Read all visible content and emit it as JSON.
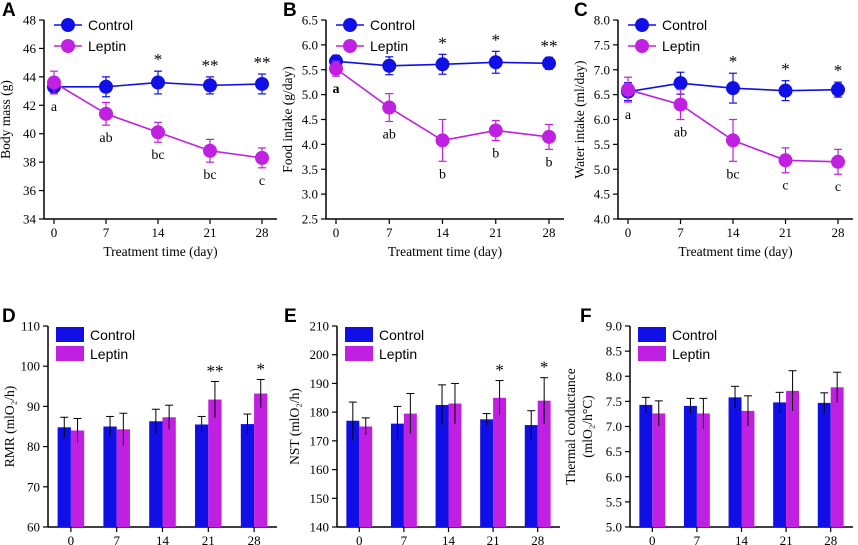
{
  "colors": {
    "control": "#1010e6",
    "leptin": "#c020e0",
    "axis": "#000000"
  },
  "chart_data": [
    {
      "panel": "A",
      "type": "line",
      "xlabel": "Treatment time (day)",
      "ylabel": "Body mass (g)",
      "x": [
        0,
        7,
        14,
        21,
        28
      ],
      "xlim": [
        0,
        28
      ],
      "ylim": [
        34,
        48
      ],
      "yticks": [
        "34",
        "36",
        "38",
        "40",
        "42",
        "44",
        "46",
        "48"
      ],
      "legend": [
        "Control",
        "Leptin"
      ],
      "series": [
        {
          "name": "Control",
          "values": [
            43.3,
            43.3,
            43.6,
            43.4,
            43.5
          ],
          "errors": [
            0.5,
            0.7,
            0.8,
            0.6,
            0.7
          ]
        },
        {
          "name": "Leptin",
          "values": [
            43.6,
            41.4,
            40.1,
            38.8,
            38.3
          ],
          "errors": [
            0.8,
            0.8,
            0.7,
            0.8,
            0.7
          ]
        }
      ],
      "stars": [
        "",
        "",
        "*",
        "**",
        "**"
      ],
      "letters": [
        "a",
        "ab",
        "bc",
        "bc",
        "c"
      ]
    },
    {
      "panel": "B",
      "type": "line",
      "xlabel": "Treatment time (day)",
      "ylabel": "Food intake (g/day)",
      "x": [
        0,
        7,
        14,
        21,
        28
      ],
      "xlim": [
        0,
        28
      ],
      "ylim": [
        2.5,
        6.5
      ],
      "yticks": [
        "2.5",
        "3.0",
        "3.5",
        "4.0",
        "4.5",
        "5.0",
        "5.5",
        "6.0",
        "6.5"
      ],
      "legend": [
        "Control",
        "Leptin"
      ],
      "series": [
        {
          "name": "Control",
          "values": [
            5.67,
            5.58,
            5.61,
            5.65,
            5.63
          ],
          "errors": [
            0.12,
            0.18,
            0.2,
            0.22,
            0.12
          ]
        },
        {
          "name": "Leptin",
          "values": [
            5.52,
            4.74,
            4.08,
            4.28,
            4.15
          ],
          "errors": [
            0.15,
            0.28,
            0.42,
            0.2,
            0.25
          ]
        }
      ],
      "stars": [
        "",
        "",
        "*",
        "*",
        "**"
      ],
      "letters": [
        "a",
        "ab",
        "b",
        "b",
        "b"
      ]
    },
    {
      "panel": "C",
      "type": "line",
      "xlabel": "Treatment time (day)",
      "ylabel": "Water intake (ml/day)",
      "x": [
        0,
        7,
        14,
        21,
        28
      ],
      "xlim": [
        0,
        28
      ],
      "ylim": [
        4.0,
        8.0
      ],
      "yticks": [
        "4.0",
        "4.5",
        "5.0",
        "5.5",
        "6.0",
        "6.5",
        "7.0",
        "7.5",
        "8.0"
      ],
      "legend": [
        "Control",
        "Leptin"
      ],
      "series": [
        {
          "name": "Control",
          "values": [
            6.56,
            6.73,
            6.63,
            6.58,
            6.6
          ],
          "errors": [
            0.18,
            0.22,
            0.3,
            0.2,
            0.15
          ]
        },
        {
          "name": "Leptin",
          "values": [
            6.6,
            6.3,
            5.58,
            5.18,
            5.15
          ],
          "errors": [
            0.25,
            0.3,
            0.42,
            0.25,
            0.25
          ]
        }
      ],
      "stars": [
        "",
        "",
        "*",
        "*",
        "*"
      ],
      "letters": [
        "a",
        "ab",
        "bc",
        "c",
        "c"
      ]
    },
    {
      "panel": "D",
      "type": "bar",
      "xlabel": "Treatment time (day)",
      "ylabel": "RMR (mlO₂/h)",
      "categories": [
        "0",
        "7",
        "14",
        "21",
        "28"
      ],
      "ylim": [
        60,
        110
      ],
      "yticks": [
        "60",
        "70",
        "80",
        "90",
        "100",
        "110"
      ],
      "legend": [
        "Control",
        "Leptin"
      ],
      "series": [
        {
          "name": "Control",
          "values": [
            84.8,
            85.0,
            86.3,
            85.5,
            85.6
          ],
          "errors": [
            2.5,
            2.5,
            3.0,
            2.0,
            2.5
          ]
        },
        {
          "name": "Leptin",
          "values": [
            84.0,
            84.3,
            87.3,
            91.7,
            93.2
          ],
          "errors": [
            3.0,
            4.0,
            3.0,
            4.5,
            3.5
          ]
        }
      ],
      "stars": [
        "",
        "",
        "",
        "**",
        "*"
      ]
    },
    {
      "panel": "E",
      "type": "bar",
      "xlabel": "Treatment time (day)",
      "ylabel": "NST (mlO₂/h)",
      "categories": [
        "0",
        "7",
        "14",
        "21",
        "28"
      ],
      "ylim": [
        140,
        210
      ],
      "yticks": [
        "140",
        "150",
        "160",
        "170",
        "180",
        "190",
        "200",
        "210"
      ],
      "legend": [
        "Control",
        "Leptin"
      ],
      "series": [
        {
          "name": "Control",
          "values": [
            177,
            176,
            182.5,
            177.5,
            175.5
          ],
          "errors": [
            6.5,
            6.0,
            7.0,
            2.0,
            5.0
          ]
        },
        {
          "name": "Leptin",
          "values": [
            175,
            179.5,
            183,
            185,
            184
          ],
          "errors": [
            3.0,
            7.0,
            7.0,
            6.0,
            8.0
          ]
        }
      ],
      "stars": [
        "",
        "",
        "",
        "*",
        "*"
      ]
    },
    {
      "panel": "F",
      "type": "bar",
      "xlabel": "Treatment time (day)",
      "ylabel": "Thermal conductance (mlO₂/h°C)",
      "categories": [
        "0",
        "7",
        "14",
        "21",
        "28"
      ],
      "ylim": [
        5.0,
        9.0
      ],
      "yticks": [
        "5.0",
        "5.5",
        "6.0",
        "6.5",
        "7.0",
        "7.5",
        "8.0",
        "8.5",
        "9.0"
      ],
      "legend": [
        "Control",
        "Leptin"
      ],
      "series": [
        {
          "name": "Control",
          "values": [
            7.43,
            7.41,
            7.58,
            7.48,
            7.47
          ],
          "errors": [
            0.15,
            0.15,
            0.22,
            0.2,
            0.2
          ]
        },
        {
          "name": "Leptin",
          "values": [
            7.26,
            7.26,
            7.31,
            7.71,
            7.78
          ],
          "errors": [
            0.25,
            0.3,
            0.3,
            0.4,
            0.3
          ]
        }
      ],
      "stars": [
        "",
        "",
        "",
        "",
        ""
      ]
    }
  ]
}
